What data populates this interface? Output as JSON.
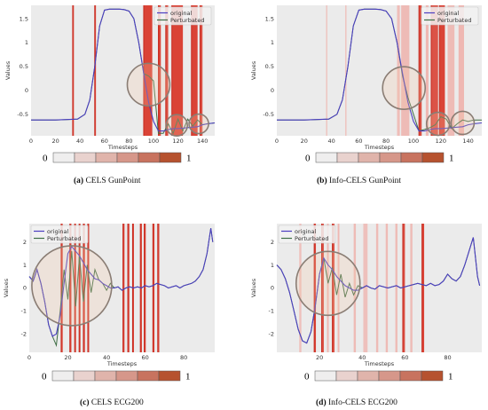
{
  "colors": {
    "panel_bg": "#ebebeb",
    "original_line": "#4b3fc0",
    "perturbated_line": "#3f6e45",
    "highlight_strong": "#d93a2c",
    "highlight_light": "#f0a7a0",
    "colorbar": [
      "#efeeee",
      "#e9d2ce",
      "#e0b4ab",
      "#d6978a",
      "#c8735f",
      "#b6522f"
    ]
  },
  "colorbar": {
    "min_label": "0",
    "max_label": "1"
  },
  "common": {
    "xlabel": "Timesteps",
    "ylabel": "Values",
    "legend_original": "original",
    "legend_perturbated": "Perturbated"
  },
  "captions": [
    {
      "letter": "(a)",
      "text": "CELS GunPoint"
    },
    {
      "letter": "(b)",
      "text": "Info-CELS GunPoint"
    },
    {
      "letter": "(c)",
      "text": "CELS ECG200"
    },
    {
      "letter": "(d)",
      "text": "Info-CELS ECG200"
    }
  ],
  "chart_data": [
    {
      "type": "line",
      "dataset": "GunPoint",
      "xlabel": "Timesteps",
      "ylabel": "Values",
      "xlim": [
        0,
        150
      ],
      "ylim": [
        -0.95,
        1.78
      ],
      "xticks": [
        0,
        20,
        40,
        60,
        80,
        100,
        120,
        140
      ],
      "yticks": [
        -0.5,
        0.0,
        0.5,
        1.0,
        1.5
      ],
      "legend": "top-right",
      "series": [
        {
          "name": "original",
          "x": [
            0,
            20,
            38,
            44,
            48,
            52,
            56,
            60,
            64,
            68,
            72,
            76,
            80,
            84,
            88,
            92,
            96,
            100,
            104,
            108,
            112,
            116,
            120,
            124,
            128,
            132,
            136,
            140,
            144,
            150
          ],
          "y": [
            -0.62,
            -0.62,
            -0.6,
            -0.5,
            -0.2,
            0.5,
            1.35,
            1.68,
            1.7,
            1.7,
            1.7,
            1.69,
            1.66,
            1.5,
            1.0,
            0.35,
            -0.25,
            -0.65,
            -0.85,
            -0.85,
            -0.82,
            -0.8,
            -0.8,
            -0.79,
            -0.78,
            -0.77,
            -0.76,
            -0.72,
            -0.7,
            -0.68
          ]
        },
        {
          "name": "Perturbated",
          "x": [
            0,
            20,
            38,
            44,
            48,
            52,
            56,
            60,
            64,
            68,
            72,
            76,
            80,
            84,
            88,
            92,
            96,
            100,
            104,
            108,
            112,
            116,
            120,
            124,
            128,
            132,
            136,
            140,
            144,
            150
          ],
          "y": [
            -0.62,
            -0.62,
            -0.6,
            -0.5,
            -0.2,
            0.5,
            1.35,
            1.68,
            1.7,
            1.7,
            1.7,
            1.69,
            1.66,
            1.5,
            1.0,
            0.35,
            0.3,
            0.2,
            -0.9,
            -0.9,
            -0.7,
            -0.9,
            -0.6,
            -0.85,
            -0.6,
            -0.75,
            -0.62,
            -0.72,
            -0.7,
            -0.68
          ]
        }
      ],
      "highlight_bands": [
        {
          "start": 34,
          "end": 35,
          "weight": 1.0
        },
        {
          "start": 52,
          "end": 53,
          "weight": 1.0
        },
        {
          "start": 92,
          "end": 99,
          "weight": 1.0
        },
        {
          "start": 104,
          "end": 106,
          "weight": 1.0
        },
        {
          "start": 110,
          "end": 112,
          "weight": 0.9
        },
        {
          "start": 115,
          "end": 124,
          "weight": 1.0
        },
        {
          "start": 131,
          "end": 136,
          "weight": 1.0
        },
        {
          "start": 138,
          "end": 140,
          "weight": 0.9
        }
      ]
    },
    {
      "type": "line",
      "dataset": "GunPoint",
      "xlabel": "Timesteps",
      "ylabel": "Values",
      "xlim": [
        0,
        150
      ],
      "ylim": [
        -0.95,
        1.78
      ],
      "xticks": [
        0,
        20,
        40,
        60,
        80,
        100,
        120,
        140
      ],
      "yticks": [
        -0.5,
        0.0,
        0.5,
        1.0,
        1.5
      ],
      "legend": "top-right",
      "series": [
        {
          "name": "original",
          "x": [
            0,
            20,
            38,
            44,
            48,
            52,
            56,
            60,
            64,
            68,
            72,
            76,
            80,
            84,
            88,
            92,
            96,
            100,
            104,
            108,
            112,
            116,
            120,
            124,
            128,
            132,
            136,
            140,
            144,
            150
          ],
          "y": [
            -0.62,
            -0.62,
            -0.6,
            -0.5,
            -0.2,
            0.5,
            1.35,
            1.68,
            1.7,
            1.7,
            1.7,
            1.69,
            1.66,
            1.5,
            1.0,
            0.35,
            -0.25,
            -0.65,
            -0.85,
            -0.85,
            -0.82,
            -0.8,
            -0.8,
            -0.79,
            -0.78,
            -0.77,
            -0.76,
            -0.72,
            -0.7,
            -0.68
          ]
        },
        {
          "name": "Perturbated",
          "x": [
            0,
            20,
            38,
            44,
            48,
            52,
            56,
            60,
            64,
            68,
            72,
            76,
            80,
            84,
            88,
            92,
            96,
            100,
            104,
            108,
            112,
            116,
            120,
            124,
            128,
            132,
            136,
            140,
            144,
            150
          ],
          "y": [
            -0.62,
            -0.62,
            -0.6,
            -0.5,
            -0.2,
            0.5,
            1.35,
            1.68,
            1.7,
            1.7,
            1.7,
            1.69,
            1.66,
            1.5,
            1.0,
            0.3,
            -0.15,
            -0.5,
            -0.85,
            -0.82,
            -0.78,
            -0.72,
            -0.55,
            -0.6,
            -0.8,
            -0.7,
            -0.62,
            -0.65,
            -0.62,
            -0.62
          ]
        }
      ],
      "highlight_bands": [
        {
          "start": 36,
          "end": 37,
          "weight": 0.35
        },
        {
          "start": 50,
          "end": 51,
          "weight": 0.35
        },
        {
          "start": 88,
          "end": 90,
          "weight": 0.55
        },
        {
          "start": 91,
          "end": 97,
          "weight": 0.6
        },
        {
          "start": 104,
          "end": 106,
          "weight": 0.9
        },
        {
          "start": 109,
          "end": 111,
          "weight": 0.7
        },
        {
          "start": 113,
          "end": 118,
          "weight": 0.85
        },
        {
          "start": 119,
          "end": 123,
          "weight": 1.0
        },
        {
          "start": 125,
          "end": 130,
          "weight": 0.6
        },
        {
          "start": 133,
          "end": 137,
          "weight": 0.7
        }
      ]
    },
    {
      "type": "line",
      "dataset": "ECG200",
      "xlabel": "Timesteps",
      "ylabel": "Values",
      "xlim": [
        0,
        96
      ],
      "ylim": [
        -2.8,
        2.8
      ],
      "xticks": [
        0,
        20,
        40,
        60,
        80
      ],
      "yticks": [
        -2,
        -1,
        0,
        1,
        2
      ],
      "legend": "top-left",
      "series": [
        {
          "name": "original",
          "x": [
            0,
            2,
            4,
            6,
            8,
            10,
            12,
            14,
            16,
            18,
            20,
            22,
            24,
            26,
            28,
            30,
            32,
            34,
            36,
            38,
            40,
            42,
            44,
            46,
            48,
            50,
            52,
            54,
            56,
            58,
            60,
            62,
            64,
            66,
            68,
            70,
            72,
            74,
            76,
            78,
            80,
            82,
            84,
            86,
            88,
            90,
            92,
            94,
            95
          ],
          "y": [
            0.5,
            0.3,
            0.8,
            0.2,
            -0.6,
            -1.6,
            -2.1,
            -2.0,
            -1.2,
            0.2,
            1.5,
            1.8,
            1.6,
            1.4,
            1.1,
            0.8,
            0.6,
            0.4,
            0.35,
            0.2,
            0.1,
            0.0,
            0.0,
            0.05,
            -0.1,
            0.0,
            0.05,
            0.0,
            0.05,
            0.0,
            0.1,
            0.05,
            0.1,
            0.2,
            0.15,
            0.1,
            0.0,
            0.05,
            0.1,
            0.0,
            0.1,
            0.15,
            0.2,
            0.3,
            0.5,
            0.8,
            1.5,
            2.6,
            2.0
          ]
        },
        {
          "name": "Perturbated",
          "x": [
            0,
            2,
            4,
            6,
            8,
            10,
            12,
            14,
            16,
            18,
            20,
            22,
            24,
            26,
            28,
            30,
            32,
            34,
            36,
            38,
            40,
            42,
            44,
            46,
            48,
            50,
            52,
            54,
            56,
            58,
            60,
            62,
            64,
            66,
            68,
            70,
            72,
            74,
            76,
            78,
            80,
            82,
            84,
            86,
            88,
            90,
            92,
            94,
            95
          ],
          "y": [
            0.5,
            0.3,
            0.8,
            0.2,
            -0.6,
            -1.6,
            -2.1,
            -2.5,
            -1.0,
            0.8,
            -0.5,
            1.6,
            -0.8,
            1.4,
            -0.6,
            1.0,
            -0.2,
            0.8,
            0.35,
            0.2,
            -0.1,
            0.2,
            0.0,
            0.05,
            -0.1,
            0.0,
            0.05,
            0.0,
            0.05,
            0.0,
            0.1,
            0.05,
            0.1,
            0.2,
            0.15,
            0.1,
            0.0,
            0.05,
            0.1,
            0.0,
            0.1,
            0.15,
            0.2,
            0.3,
            0.5,
            0.8,
            1.5,
            2.6,
            2.0
          ]
        }
      ],
      "highlight_bands": [
        {
          "start": 16.5,
          "end": 17.3,
          "weight": 1.0
        },
        {
          "start": 21.0,
          "end": 21.8,
          "weight": 1.0
        },
        {
          "start": 23.5,
          "end": 24.2,
          "weight": 1.0
        },
        {
          "start": 25.8,
          "end": 26.5,
          "weight": 1.0
        },
        {
          "start": 28.0,
          "end": 28.8,
          "weight": 1.0
        },
        {
          "start": 30.3,
          "end": 31.0,
          "weight": 1.0
        },
        {
          "start": 48.5,
          "end": 49.3,
          "weight": 1.0
        },
        {
          "start": 51.0,
          "end": 51.8,
          "weight": 1.0
        },
        {
          "start": 53.5,
          "end": 54.2,
          "weight": 1.0
        },
        {
          "start": 57.5,
          "end": 58.3,
          "weight": 1.0
        },
        {
          "start": 59.5,
          "end": 60.3,
          "weight": 1.0
        },
        {
          "start": 64.0,
          "end": 64.8,
          "weight": 1.0
        },
        {
          "start": 66.5,
          "end": 67.3,
          "weight": 1.0
        }
      ]
    },
    {
      "type": "line",
      "dataset": "ECG200",
      "xlabel": "Timesteps",
      "ylabel": "Values",
      "xlim": [
        0,
        96
      ],
      "ylim": [
        -2.8,
        2.8
      ],
      "xticks": [
        20,
        40,
        60,
        80
      ],
      "yticks": [
        -2,
        -1,
        0,
        1,
        2
      ],
      "legend": "top-left",
      "series": [
        {
          "name": "original",
          "x": [
            0,
            2,
            4,
            6,
            8,
            10,
            12,
            14,
            16,
            18,
            20,
            22,
            24,
            26,
            28,
            30,
            32,
            34,
            36,
            38,
            40,
            42,
            44,
            46,
            48,
            50,
            52,
            54,
            56,
            58,
            60,
            62,
            64,
            66,
            68,
            70,
            72,
            74,
            76,
            78,
            80,
            82,
            84,
            86,
            88,
            90,
            92,
            94,
            95
          ],
          "y": [
            1.0,
            0.8,
            0.4,
            -0.2,
            -1.0,
            -1.8,
            -2.3,
            -2.4,
            -1.9,
            -0.8,
            0.6,
            1.3,
            1.0,
            0.8,
            0.5,
            0.3,
            0.1,
            0.0,
            -0.1,
            -0.1,
            0.0,
            0.1,
            0.0,
            -0.05,
            0.1,
            0.05,
            0.0,
            0.05,
            0.1,
            0.0,
            0.05,
            0.1,
            0.15,
            0.2,
            0.15,
            0.1,
            0.2,
            0.1,
            0.15,
            0.3,
            0.6,
            0.4,
            0.3,
            0.5,
            1.0,
            1.6,
            2.2,
            0.5,
            0.1
          ]
        },
        {
          "name": "Perturbated",
          "x": [
            0,
            2,
            4,
            6,
            8,
            10,
            12,
            14,
            16,
            18,
            20,
            22,
            24,
            26,
            28,
            30,
            32,
            34,
            36,
            38,
            40,
            42,
            44,
            46,
            48,
            50,
            52,
            54,
            56,
            58,
            60,
            62,
            64,
            66,
            68,
            70,
            72,
            74,
            76,
            78,
            80,
            82,
            84,
            86,
            88,
            90,
            92,
            94,
            95
          ],
          "y": [
            1.0,
            0.8,
            0.4,
            -0.2,
            -1.0,
            -1.8,
            -2.3,
            -2.4,
            -1.9,
            -0.8,
            0.6,
            1.3,
            0.2,
            0.9,
            -0.3,
            0.6,
            -0.4,
            0.2,
            -0.3,
            0.1,
            0.0,
            0.1,
            0.0,
            -0.05,
            0.1,
            0.05,
            0.0,
            0.05,
            0.1,
            0.0,
            0.05,
            0.1,
            0.15,
            0.2,
            0.15,
            0.1,
            0.2,
            0.1,
            0.15,
            0.3,
            0.6,
            0.4,
            0.3,
            0.5,
            1.0,
            1.6,
            2.2,
            0.5,
            0.1
          ]
        }
      ],
      "highlight_bands": [
        {
          "start": 10.5,
          "end": 11.5,
          "weight": 0.45
        },
        {
          "start": 17.5,
          "end": 18.3,
          "weight": 1.0
        },
        {
          "start": 21.0,
          "end": 22.0,
          "weight": 0.9
        },
        {
          "start": 23.5,
          "end": 24.3,
          "weight": 0.7
        },
        {
          "start": 26.0,
          "end": 27.0,
          "weight": 0.9
        },
        {
          "start": 28.5,
          "end": 29.3,
          "weight": 0.7
        },
        {
          "start": 36.0,
          "end": 37.0,
          "weight": 0.6
        },
        {
          "start": 40.5,
          "end": 42.5,
          "weight": 0.45
        },
        {
          "start": 46.5,
          "end": 47.5,
          "weight": 0.6
        },
        {
          "start": 51.0,
          "end": 52.0,
          "weight": 0.6
        },
        {
          "start": 55.5,
          "end": 56.5,
          "weight": 0.6
        },
        {
          "start": 59.0,
          "end": 60.0,
          "weight": 0.9
        },
        {
          "start": 62.5,
          "end": 63.5,
          "weight": 0.6
        },
        {
          "start": 68.0,
          "end": 69.0,
          "weight": 1.0
        }
      ]
    }
  ]
}
